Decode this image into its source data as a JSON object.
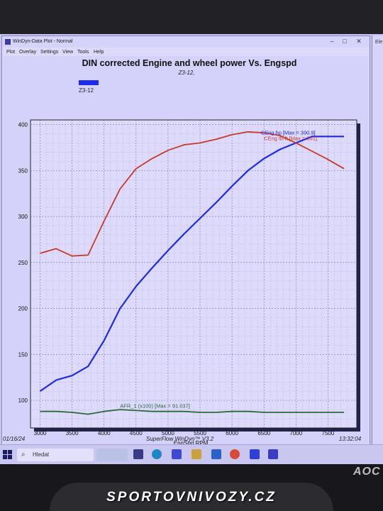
{
  "window": {
    "title": "WinDyn-Data Plot - Normal",
    "menu": [
      "Plot",
      "Overlay",
      "Settings",
      "View",
      "Tools",
      "Help"
    ]
  },
  "side_window": {
    "label": "Ele"
  },
  "footer": {
    "date": "01/16/24",
    "software": "SuperFlow WinDyn™ V3.2",
    "time": "13:32:04"
  },
  "taskbar": {
    "search_placeholder": "Hledat",
    "icons": [
      "start-icon",
      "search-icon",
      "taskview-icon",
      "edge-icon",
      "store-icon",
      "files-icon",
      "mail-icon",
      "chrome-icon",
      "app-icon",
      "superflow-icon"
    ]
  },
  "monitor_brand": "AOC",
  "watermark": "SPORTOVNIVOZY.CZ",
  "chart_data": {
    "type": "line",
    "title": "DIN corrected Engine and wheel power Vs. Engspd",
    "subtitle": "Z3-12,",
    "legend": [
      "Z3-12"
    ],
    "xlabel": "EngSpd RPM",
    "ylabel": "",
    "xlim": [
      2850,
      7950
    ],
    "ylim": [
      70,
      405
    ],
    "xticks": [
      3000,
      3500,
      4000,
      4500,
      5000,
      5500,
      6000,
      6500,
      7000,
      7500
    ],
    "yticks": [
      100,
      150,
      200,
      250,
      300,
      350,
      400
    ],
    "grid": true,
    "series": [
      {
        "name": "CEng hp [Max = 390.9]",
        "color": "#1f2bea",
        "x": [
          3000,
          3250,
          3500,
          3750,
          4000,
          4250,
          4500,
          4750,
          5000,
          5250,
          5500,
          5750,
          6000,
          6250,
          6500,
          6750,
          7000,
          7250,
          7500,
          7750
        ],
        "values": [
          110,
          122,
          127,
          137,
          165,
          200,
          224,
          244,
          263,
          281,
          298,
          315,
          333,
          350,
          363,
          373,
          380,
          387,
          387,
          387
        ]
      },
      {
        "name": "CEng lb-ft [Max = 391]",
        "color": "#c73a2a",
        "x": [
          3000,
          3250,
          3500,
          3750,
          4000,
          4250,
          4500,
          4750,
          5000,
          5250,
          5500,
          5750,
          6000,
          6250,
          6500,
          6750,
          7000,
          7250,
          7500,
          7750
        ],
        "values": [
          260,
          265,
          257,
          258,
          295,
          330,
          352,
          363,
          372,
          378,
          380,
          384,
          389,
          392,
          391,
          388,
          380,
          371,
          362,
          352
        ]
      },
      {
        "name": "AFR_1 (x100) [Max = 91.037]",
        "color": "#2a6a3a",
        "x": [
          3000,
          3250,
          3500,
          3750,
          4000,
          4250,
          4500,
          4750,
          5000,
          5250,
          5500,
          5750,
          6000,
          6250,
          6500,
          6750,
          7000,
          7250,
          7500,
          7750
        ],
        "values": [
          88,
          88,
          87,
          85,
          88,
          90,
          89,
          88,
          88,
          88,
          87,
          87,
          88,
          88,
          87,
          87,
          87,
          87,
          87,
          87
        ]
      }
    ]
  }
}
